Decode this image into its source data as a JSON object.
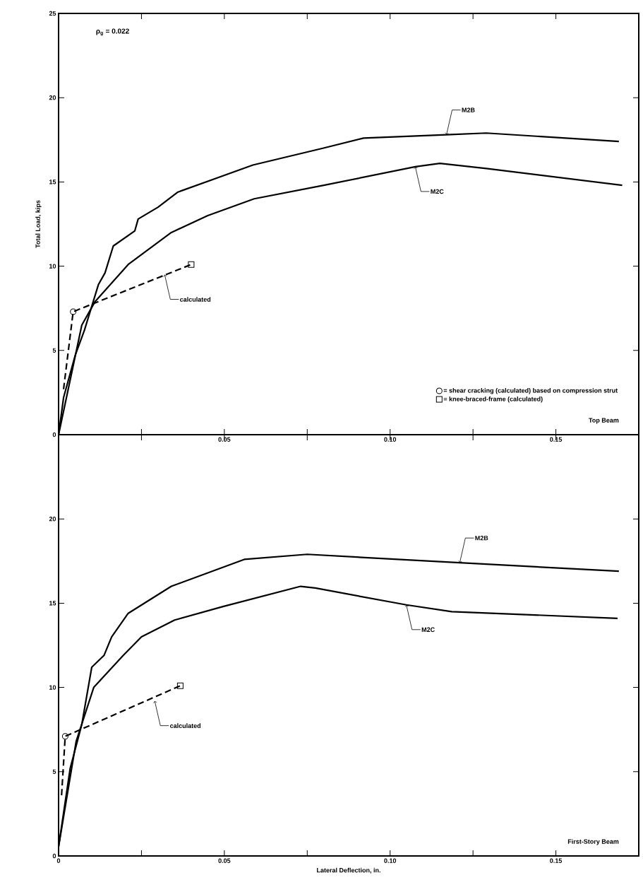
{
  "chart_data": [
    {
      "type": "line",
      "ylabel": "Total Load, kips",
      "xlim": [
        0,
        0.175
      ],
      "ylim": [
        0,
        25
      ],
      "xticks": [
        {
          "value": 0,
          "label": null
        },
        {
          "value": 0.025,
          "label": null
        },
        {
          "value": 0.05,
          "label": "0.05"
        },
        {
          "value": 0.075,
          "label": null
        },
        {
          "value": 0.1,
          "label": "0.10"
        },
        {
          "value": 0.125,
          "label": null
        },
        {
          "value": 0.15,
          "label": "0.15"
        }
      ],
      "yticks": [
        0,
        5,
        10,
        15,
        20,
        25
      ],
      "legend": "bottom right",
      "annotations": [
        "ρ$_{g}$ = 0.022",
        "Top Beam",
        {
          "text": "M2B",
          "x": 0.117,
          "y": 17.8
        },
        {
          "text": "M2C",
          "x": 0.1076,
          "y": 15.9
        },
        {
          "text": "calculated",
          "x": 0.032,
          "y": 9.5
        }
      ],
      "series": [
        {
          "color": "#000000",
          "line_style": "solid",
          "x": [
            0,
            0.0015,
            0.005,
            0.0078,
            0.012,
            0.014,
            0.0165,
            0.023,
            0.024,
            0.03,
            0.036,
            0.0586,
            0.0797,
            0.092,
            0.117,
            0.129,
            0.169
          ],
          "values": [
            0,
            2.2,
            4.7,
            6.2,
            8.9,
            9.6,
            11.2,
            12.1,
            12.8,
            13.5,
            14.4,
            16.0,
            17.0,
            17.6,
            17.8,
            17.9,
            17.4
          ]
        },
        {
          "color": "#000000",
          "line_style": "solid",
          "x": [
            0,
            0.007,
            0.011,
            0.021,
            0.034,
            0.045,
            0.059,
            0.08,
            0.1076,
            0.115,
            0.129,
            0.17
          ],
          "values": [
            0,
            6.5,
            7.9,
            10.1,
            12.0,
            13.0,
            14.0,
            14.8,
            15.9,
            16.1,
            15.8,
            14.8
          ]
        },
        {
          "color": "#000000",
          "line_style": "dashed",
          "x": [
            0.0015,
            0.0044,
            0.04
          ],
          "values": [
            2.7,
            7.3,
            10.1
          ]
        },
        {
          "type": "scatter",
          "name": "= shear cracking (calculated) based on compression strut",
          "color": "#000000",
          "marker": "circle",
          "x": [
            0.0044
          ],
          "values": [
            7.3
          ]
        },
        {
          "type": "scatter",
          "name": "= knee-braced-frame (calculated)",
          "color": "#000000",
          "marker": "square",
          "x": [
            0.04
          ],
          "values": [
            10.1
          ]
        }
      ]
    },
    {
      "type": "line",
      "xlabel": "Lateral Deflection, in.",
      "xlim": [
        0,
        0.175
      ],
      "ylim": [
        0,
        25
      ],
      "xticks": [
        {
          "value": 0,
          "label": "0"
        },
        {
          "value": 0.025,
          "label": null
        },
        {
          "value": 0.05,
          "label": "0.05"
        },
        {
          "value": 0.075,
          "label": null
        },
        {
          "value": 0.1,
          "label": "0.10"
        },
        {
          "value": 0.125,
          "label": null
        },
        {
          "value": 0.15,
          "label": "0.15"
        }
      ],
      "yticks": [
        0,
        5,
        10,
        15,
        20
      ],
      "annotations": [
        "First-Story Beam",
        {
          "text": "M2B",
          "x": 0.121,
          "y": 17.4
        },
        {
          "text": "M2C",
          "x": 0.1049,
          "y": 14.9
        },
        {
          "text": "calculated",
          "x": 0.029,
          "y": 9.2
        }
      ],
      "series": [
        {
          "color": "#000000",
          "line_style": "solid",
          "x": [
            0,
            0.0035,
            0.007,
            0.01,
            0.0137,
            0.016,
            0.021,
            0.034,
            0.056,
            0.075,
            0.121,
            0.169
          ],
          "values": [
            0.55,
            5.2,
            7.8,
            11.2,
            11.9,
            13.0,
            14.4,
            16.0,
            17.6,
            17.9,
            17.4,
            16.9
          ]
        },
        {
          "color": "#000000",
          "line_style": "solid",
          "x": [
            0,
            0.0053,
            0.0106,
            0.0195,
            0.025,
            0.035,
            0.0496,
            0.073,
            0.0774,
            0.1049,
            0.1186,
            0.1686
          ],
          "values": [
            0.55,
            6.8,
            10.0,
            11.9,
            13.0,
            14.0,
            14.8,
            16.0,
            15.9,
            14.9,
            14.5,
            14.1
          ]
        },
        {
          "color": "#000000",
          "line_style": "dashed",
          "x": [
            0.0009,
            0.002,
            0.0367
          ],
          "values": [
            3.6,
            7.1,
            10.1
          ]
        },
        {
          "type": "scatter",
          "color": "#000000",
          "marker": "circle",
          "x": [
            0.002
          ],
          "values": [
            7.1
          ]
        },
        {
          "type": "scatter",
          "color": "#000000",
          "marker": "square",
          "x": [
            0.0367
          ],
          "values": [
            10.1
          ]
        }
      ]
    }
  ]
}
